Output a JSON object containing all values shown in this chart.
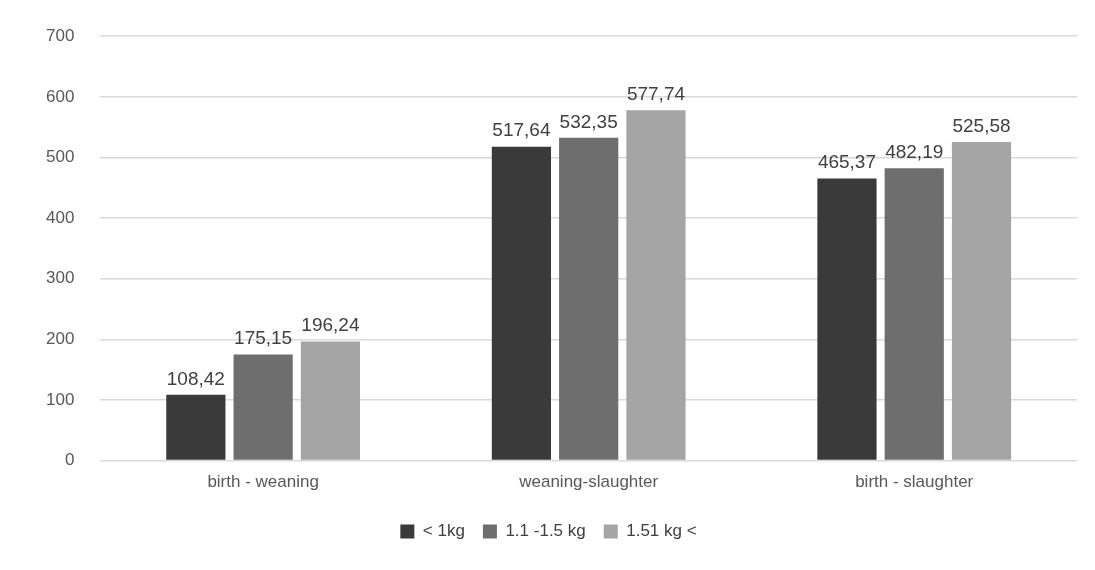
{
  "chart_data": {
    "type": "bar",
    "categories": [
      "birth - weaning",
      "weaning-slaughter",
      "birth - slaughter"
    ],
    "series": [
      {
        "name": "< 1kg",
        "color": "#3a3a3a",
        "values": [
          108.42,
          517.64,
          465.37
        ],
        "value_labels": [
          "108,42",
          "517,64",
          "465,37"
        ]
      },
      {
        "name": "1.1 -1.5 kg",
        "color": "#6e6e6e",
        "values": [
          175.15,
          532.35,
          482.19
        ],
        "value_labels": [
          "175,15",
          "532,35",
          "482,19"
        ]
      },
      {
        "name": "1.51 kg <",
        "color": "#a5a5a5",
        "values": [
          196.24,
          577.74,
          525.58
        ],
        "value_labels": [
          "196,24",
          "577,74",
          "525,58"
        ]
      }
    ],
    "ylim": [
      0,
      700
    ],
    "yticks": [
      0,
      100,
      200,
      300,
      400,
      500,
      600,
      700
    ],
    "grid": "y",
    "legend": "bottom"
  }
}
